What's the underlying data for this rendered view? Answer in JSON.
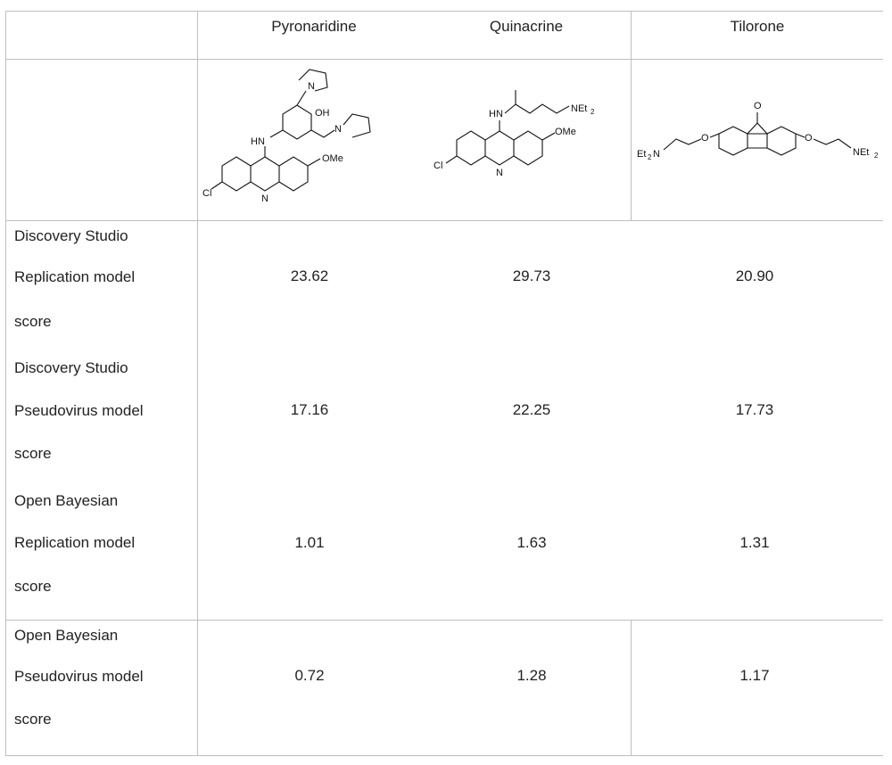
{
  "columns": [
    "",
    "Pyronaridine",
    "Quinacrine",
    "Tilorone"
  ],
  "rows": [
    {
      "label": [
        "Discovery Studio",
        "Replication model",
        "score"
      ],
      "values": [
        "23.62",
        "29.73",
        "20.90"
      ]
    },
    {
      "label": [
        "Discovery Studio",
        "Pseudovirus model",
        "score"
      ],
      "values": [
        "17.16",
        "22.25",
        "17.73"
      ]
    },
    {
      "label": [
        "Open Bayesian",
        "Replication model",
        "score"
      ],
      "values": [
        "1.01",
        "1.63",
        "1.31"
      ]
    },
    {
      "label": [
        "Open Bayesian",
        "Pseudovirus model",
        "score"
      ],
      "values": [
        "0.72",
        "1.28",
        "1.17"
      ]
    }
  ],
  "structures": {
    "pyronaridine": {
      "atoms": [
        "N",
        "OH",
        "N",
        "HN",
        "OMe",
        "Cl",
        "N"
      ]
    },
    "quinacrine": {
      "atoms": [
        "HN",
        "NEt",
        "2",
        "OMe",
        "Cl",
        "N"
      ]
    },
    "tilorone": {
      "atoms": [
        "O",
        "O",
        "O",
        "Et",
        "2",
        "N",
        "NEt",
        "2"
      ]
    }
  }
}
